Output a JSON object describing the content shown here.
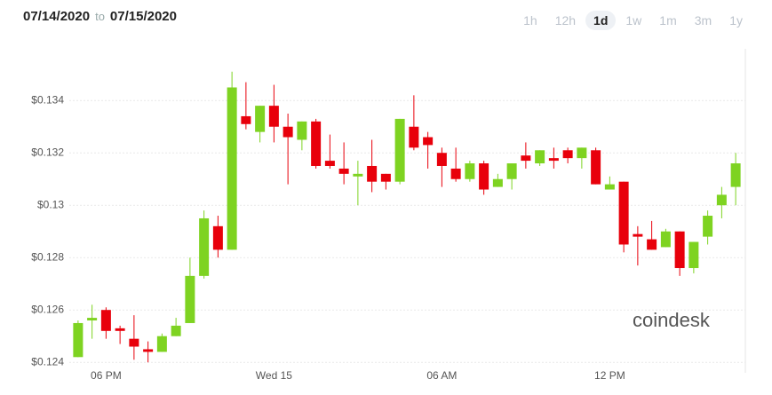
{
  "header": {
    "from": "07/14/2020",
    "separator": "to",
    "to": "07/15/2020",
    "ranges": [
      {
        "label": "1h",
        "active": false
      },
      {
        "label": "12h",
        "active": false
      },
      {
        "label": "1d",
        "active": true
      },
      {
        "label": "1w",
        "active": false
      },
      {
        "label": "1m",
        "active": false
      },
      {
        "label": "3m",
        "active": false
      },
      {
        "label": "1y",
        "active": false
      }
    ]
  },
  "chart_data": {
    "type": "candlestick",
    "watermark": "coindesk",
    "up_color": "#7ed321",
    "down_color": "#e8000b",
    "grid": true,
    "categories": [
      null,
      null,
      "06 PM",
      null,
      null,
      null,
      null,
      null,
      null,
      null,
      null,
      null,
      null,
      null,
      "Wed 15",
      null,
      null,
      null,
      null,
      null,
      null,
      null,
      null,
      null,
      null,
      null,
      "06 AM",
      null,
      null,
      null,
      null,
      null,
      null,
      null,
      null,
      null,
      null,
      null,
      "12 PM",
      null,
      null,
      null,
      null,
      null,
      null,
      null,
      null,
      null
    ],
    "open": [
      0.1242,
      0.1256,
      0.126,
      0.1253,
      0.1249,
      0.1245,
      0.1244,
      0.125,
      0.1255,
      0.1273,
      0.1292,
      0.1283,
      0.1334,
      0.1328,
      0.1338,
      0.133,
      0.1325,
      0.1332,
      0.1317,
      0.1314,
      0.1311,
      0.1315,
      0.1312,
      0.1309,
      0.133,
      0.1326,
      0.132,
      0.1314,
      0.131,
      0.1316,
      0.1307,
      0.131,
      0.1319,
      0.1316,
      0.1318,
      0.1321,
      0.1318,
      0.1321,
      0.1306,
      0.1309,
      0.1289,
      0.1287,
      0.1284,
      0.129,
      0.1276,
      0.1288,
      0.13,
      0.1307
    ],
    "high": [
      0.1256,
      0.1262,
      0.1261,
      0.1254,
      0.1258,
      0.1248,
      0.1251,
      0.1257,
      0.128,
      0.1298,
      0.1296,
      0.1351,
      0.1347,
      0.1338,
      0.1346,
      0.1335,
      0.1332,
      0.1333,
      0.1327,
      0.1324,
      0.1317,
      0.1325,
      0.1312,
      0.1333,
      0.1342,
      0.1328,
      0.1322,
      0.1322,
      0.1317,
      0.1317,
      0.1312,
      0.1316,
      0.1324,
      0.1321,
      0.1322,
      0.1322,
      0.1322,
      0.1322,
      0.1311,
      0.1309,
      0.1292,
      0.1294,
      0.1291,
      0.129,
      0.1286,
      0.1298,
      0.1307,
      0.132
    ],
    "low": [
      0.1242,
      0.1249,
      0.1249,
      0.1247,
      0.1241,
      0.124,
      0.1244,
      0.125,
      0.1255,
      0.1272,
      0.128,
      0.1283,
      0.1329,
      0.1324,
      0.1324,
      0.1308,
      0.1321,
      0.1314,
      0.1314,
      0.1308,
      0.13,
      0.1305,
      0.1306,
      0.1308,
      0.1321,
      0.1314,
      0.1307,
      0.1309,
      0.1309,
      0.1304,
      0.1307,
      0.1306,
      0.1314,
      0.1315,
      0.1314,
      0.1316,
      0.1314,
      0.1308,
      0.1306,
      0.1282,
      0.1277,
      0.1283,
      0.1284,
      0.1273,
      0.1274,
      0.1285,
      0.1295,
      0.13
    ],
    "close": [
      0.1255,
      0.1257,
      0.1252,
      0.1252,
      0.1246,
      0.1244,
      0.125,
      0.1254,
      0.1273,
      0.1295,
      0.1283,
      0.1345,
      0.1331,
      0.1338,
      0.133,
      0.1326,
      0.1332,
      0.1315,
      0.1315,
      0.1312,
      0.1312,
      0.1309,
      0.1309,
      0.1333,
      0.1322,
      0.1323,
      0.1315,
      0.131,
      0.1316,
      0.1306,
      0.131,
      0.1316,
      0.1317,
      0.1321,
      0.1317,
      0.1318,
      0.1322,
      0.1308,
      0.1308,
      0.1285,
      0.1288,
      0.1283,
      0.129,
      0.1276,
      0.1286,
      0.1296,
      0.1304,
      0.1316
    ],
    "ylim": [
      0.1236,
      0.1355
    ],
    "yticks": [
      {
        "value": 0.124,
        "label": "$0.124"
      },
      {
        "value": 0.126,
        "label": "$0.126"
      },
      {
        "value": 0.128,
        "label": "$0.128"
      },
      {
        "value": 0.13,
        "label": "$0.13"
      },
      {
        "value": 0.132,
        "label": "$0.132"
      },
      {
        "value": 0.134,
        "label": "$0.134"
      }
    ]
  }
}
